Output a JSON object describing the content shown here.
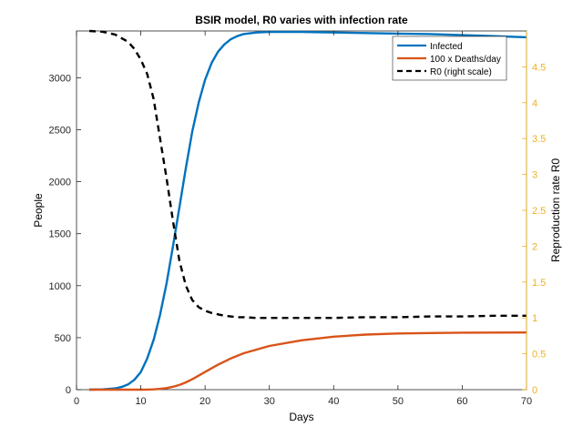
{
  "chart_data": {
    "type": "line",
    "title": "BSIR model, R0 varies with infection rate",
    "xlabel": "Days",
    "ylabel": "People",
    "y2label": "Reproduction rate R0",
    "xlim": [
      0,
      70
    ],
    "ylim": [
      0,
      3450
    ],
    "y2lim": [
      0,
      5
    ],
    "x_ticks": [
      0,
      10,
      20,
      30,
      40,
      50,
      60,
      70
    ],
    "y_ticks": [
      0,
      500,
      1000,
      1500,
      2000,
      2500,
      3000
    ],
    "y2_ticks": [
      0,
      0.5,
      1,
      1.5,
      2,
      2.5,
      3,
      3.5,
      4,
      4.5
    ],
    "y2_tick_labels": [
      "0",
      "0.5",
      "1",
      "1.5",
      "2",
      "2.5",
      "3",
      "3.5",
      "4",
      "4.5"
    ],
    "grid": false,
    "legend_position": "top-right",
    "x": [
      2,
      4,
      6,
      7,
      8,
      9,
      10,
      11,
      12,
      13,
      14,
      15,
      16,
      17,
      18,
      19,
      20,
      21,
      22,
      23,
      24,
      25,
      26,
      28,
      30,
      35,
      40,
      45,
      50,
      55,
      60,
      65,
      70
    ],
    "series": [
      {
        "name": "Infected",
        "axis": "left",
        "color": "#0072BD",
        "style": "solid",
        "values": [
          0,
          3,
          12,
          25,
          50,
          95,
          170,
          300,
          480,
          720,
          1020,
          1380,
          1750,
          2130,
          2480,
          2760,
          2980,
          3140,
          3250,
          3320,
          3370,
          3400,
          3420,
          3435,
          3440,
          3440,
          3435,
          3430,
          3425,
          3420,
          3410,
          3400,
          3390
        ]
      },
      {
        "name": "100 x Deaths/day",
        "axis": "left",
        "color": "#D95319",
        "style": "solid",
        "values": [
          0,
          0,
          0,
          0,
          0,
          0,
          0,
          1,
          3,
          8,
          15,
          28,
          45,
          70,
          100,
          135,
          170,
          205,
          240,
          270,
          300,
          325,
          350,
          385,
          420,
          475,
          510,
          530,
          540,
          545,
          548,
          549,
          550
        ]
      },
      {
        "name": "R0 (right scale)",
        "axis": "right",
        "color": "#000000",
        "style": "dashed",
        "values": [
          5,
          4.99,
          4.95,
          4.9,
          4.85,
          4.75,
          4.6,
          4.4,
          4.05,
          3.5,
          2.95,
          2.35,
          1.8,
          1.45,
          1.25,
          1.15,
          1.1,
          1.07,
          1.05,
          1.03,
          1.02,
          1.01,
          1.01,
          1.0,
          1.0,
          1.0,
          1.0,
          1.01,
          1.01,
          1.02,
          1.02,
          1.03,
          1.03
        ]
      }
    ],
    "legend": [
      "Infected",
      "100 x Deaths/day",
      "R0 (right scale)"
    ],
    "colors": {
      "left_axis": "#262626",
      "right_axis": "#EDB120",
      "axes_box": "#262626"
    }
  }
}
